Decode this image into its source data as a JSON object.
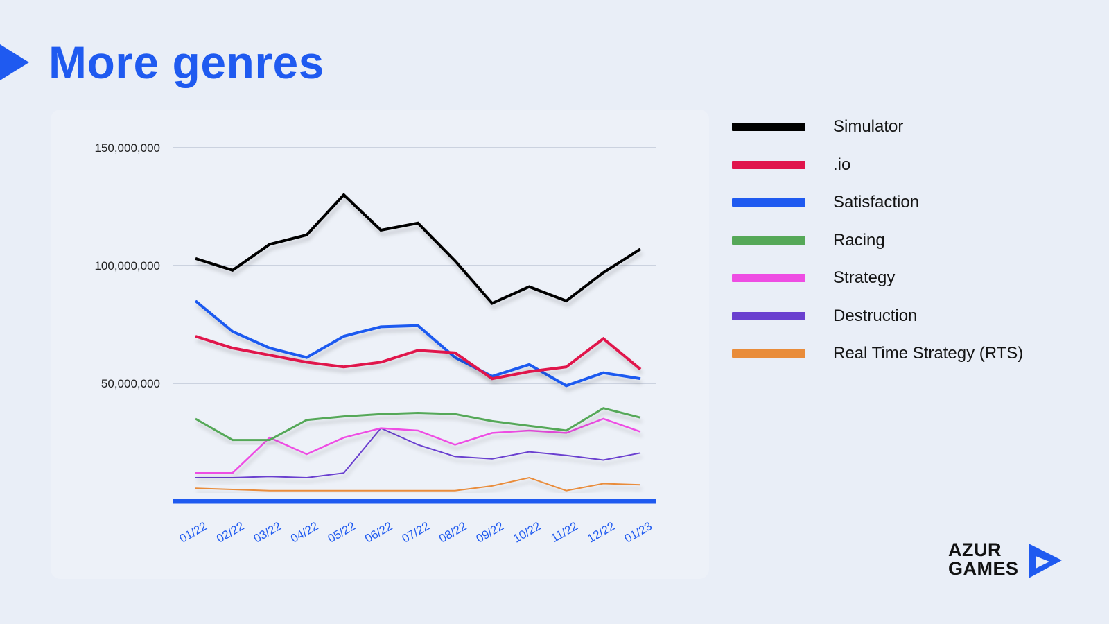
{
  "page": {
    "title": "More genres"
  },
  "brand": {
    "line1": "AZUR",
    "line2": "GAMES",
    "accent": "#1f5af0"
  },
  "chart_data": {
    "type": "line",
    "title": "",
    "xlabel": "",
    "ylabel": "",
    "categories": [
      "01/22",
      "02/22",
      "03/22",
      "04/22",
      "05/22",
      "06/22",
      "07/22",
      "08/22",
      "09/22",
      "10/22",
      "11/22",
      "12/22",
      "01/23"
    ],
    "yticks": [
      {
        "value": 50000000,
        "label": "50,000,000"
      },
      {
        "value": 100000000,
        "label": "100,000,000"
      },
      {
        "value": 150000000,
        "label": "150,000,000"
      }
    ],
    "ylim": [
      0,
      150000000
    ],
    "grid": true,
    "legend_position": "right",
    "series": [
      {
        "name": "Simulator",
        "color": "#000000",
        "width": 4,
        "values": [
          103000000,
          98000000,
          109000000,
          113000000,
          130000000,
          115000000,
          118000000,
          102000000,
          84000000,
          91000000,
          85000000,
          97000000,
          107000000
        ]
      },
      {
        "name": ".io",
        "color": "#e0144c",
        "width": 4,
        "values": [
          70000000,
          65000000,
          62000000,
          59000000,
          57000000,
          59000000,
          64000000,
          63000000,
          52000000,
          55000000,
          57000000,
          69000000,
          56000000
        ]
      },
      {
        "name": "Satisfaction",
        "color": "#1f5af0",
        "width": 4,
        "values": [
          85000000,
          72000000,
          65000000,
          61000000,
          70000000,
          74000000,
          74500000,
          61000000,
          53000000,
          58000000,
          49000000,
          54500000,
          52000000
        ]
      },
      {
        "name": "Racing",
        "color": "#55a858",
        "width": 3,
        "values": [
          35000000,
          26000000,
          26000000,
          34500000,
          36000000,
          37000000,
          37500000,
          37000000,
          34000000,
          32000000,
          30000000,
          39500000,
          35500000
        ]
      },
      {
        "name": "Strategy",
        "color": "#ee4de3",
        "width": 2.5,
        "values": [
          12000000,
          12000000,
          27000000,
          20000000,
          27000000,
          31000000,
          30000000,
          24000000,
          29000000,
          30000000,
          29000000,
          35000000,
          29500000
        ]
      },
      {
        "name": "Destruction",
        "color": "#6a3fcf",
        "width": 2,
        "values": [
          10000000,
          10000000,
          10500000,
          10000000,
          12000000,
          31000000,
          24000000,
          19000000,
          18000000,
          21000000,
          19500000,
          17500000,
          20500000
        ]
      },
      {
        "name": "Real Time Strategy (RTS)",
        "color": "#e98c3a",
        "width": 2,
        "values": [
          5500000,
          5000000,
          4500000,
          4500000,
          4500000,
          4500000,
          4500000,
          4500000,
          6500000,
          10000000,
          4500000,
          7500000,
          7000000
        ]
      }
    ]
  }
}
